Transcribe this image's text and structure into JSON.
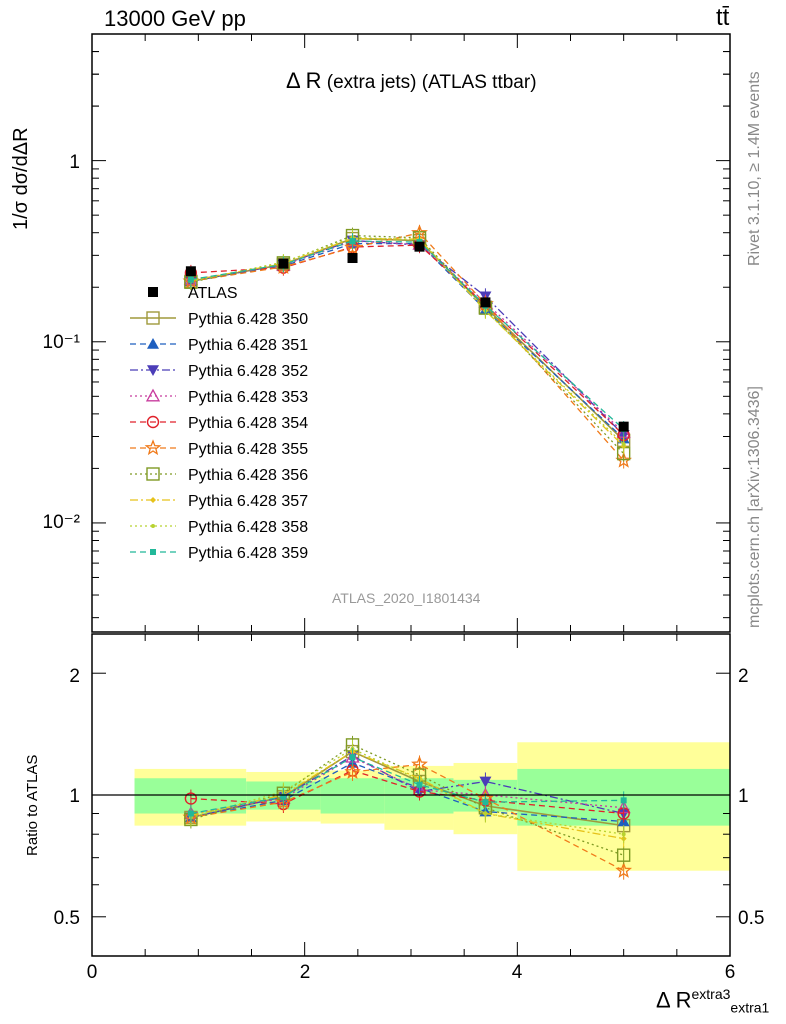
{
  "header": {
    "energy_label": "13000 GeV pp",
    "process_label": "tt̄",
    "plot_title_main": "Δ R",
    "plot_title_rest": "(extra jets) (ATLAS ttbar)",
    "analysis_id": "ATLAS_2020_I1801434",
    "side_rivet": "Rivet 3.1.10, ≥ 1.4M events",
    "side_mcplots": "mcplots.cern.ch [arXiv:1306.3436]"
  },
  "axes": {
    "ylabel_main": "1/σ dσ/dΔR",
    "ylabel_ratio": "Ratio to ATLAS",
    "xlabel_main": "Δ R",
    "xlabel_sup": "extra3",
    "xlabel_sub": "extra1",
    "main_ticks": [
      "10⁻²",
      "10⁻¹",
      "1"
    ],
    "ratio_ticks": [
      "0.5",
      "1",
      "2"
    ],
    "x_ticks": [
      "0",
      "2",
      "4",
      "6"
    ]
  },
  "chart_data": {
    "type": "line",
    "title": "Δ R (extra jets) (ATLAS ttbar)",
    "xlabel": "Δ R extra1 extra3",
    "ylabel": "1/σ dσ/dΔR",
    "yscale": "log",
    "xlim": [
      0,
      6
    ],
    "ylim": [
      0.0025,
      5
    ],
    "ratio_ylim": [
      0.4,
      2.5
    ],
    "legend_position": "left-middle",
    "bins": [
      [
        0.4,
        1.45
      ],
      [
        1.45,
        2.15
      ],
      [
        2.15,
        2.75
      ],
      [
        2.75,
        3.4
      ],
      [
        3.4,
        4.0
      ],
      [
        4.0,
        6.0
      ]
    ],
    "bin_centers": [
      0.93,
      1.8,
      2.45,
      3.08,
      3.7,
      5.0
    ],
    "atlas": {
      "name": "ATLAS",
      "values": [
        0.245,
        0.27,
        0.29,
        0.335,
        0.165,
        0.034
      ],
      "band_stat": [
        0.1,
        0.08,
        0.1,
        0.1,
        0.09,
        0.16
      ],
      "band_total": [
        0.16,
        0.14,
        0.15,
        0.18,
        0.2,
        0.35
      ]
    },
    "series": [
      {
        "name": "Pythia 6.428 350",
        "color": "#a09a3c",
        "marker": "open-square",
        "dash": "solid",
        "ratio": [
          0.88,
          0.99,
          1.28,
          1.08,
          0.94,
          0.84
        ]
      },
      {
        "name": "Pythia 6.428 351",
        "color": "#1f5fbf",
        "marker": "filled-triangle-up",
        "dash": "dashed",
        "ratio": [
          0.88,
          0.97,
          1.2,
          1.04,
          0.91,
          0.86
        ]
      },
      {
        "name": "Pythia 6.428 352",
        "color": "#4b3db8",
        "marker": "filled-triangle-down",
        "dash": "dashdot",
        "ratio": [
          0.88,
          0.99,
          1.25,
          1.02,
          1.08,
          0.9
        ]
      },
      {
        "name": "Pythia 6.428 353",
        "color": "#c83c9e",
        "marker": "open-triangle-up",
        "dash": "dotted",
        "ratio": [
          0.9,
          0.98,
          1.24,
          1.03,
          1.0,
          0.93
        ]
      },
      {
        "name": "Pythia 6.428 354",
        "color": "#e0202a",
        "marker": "open-circle",
        "dash": "dashed",
        "ratio": [
          0.98,
          0.95,
          1.15,
          1.02,
          0.97,
          0.9
        ]
      },
      {
        "name": "Pythia 6.428 355",
        "color": "#f07a1a",
        "marker": "open-star",
        "dash": "dashed",
        "ratio": [
          0.88,
          0.96,
          1.14,
          1.19,
          0.98,
          0.65
        ]
      },
      {
        "name": "Pythia 6.428 356",
        "color": "#7f9a24",
        "marker": "open-square",
        "dash": "dotted",
        "ratio": [
          0.87,
          1.01,
          1.33,
          1.12,
          0.93,
          0.71
        ]
      },
      {
        "name": "Pythia 6.428 357",
        "color": "#e6c21a",
        "marker": "filled-diamond-small",
        "dash": "dashdot",
        "ratio": [
          0.89,
          1.0,
          1.28,
          1.1,
          0.9,
          0.78
        ]
      },
      {
        "name": "Pythia 6.428 358",
        "color": "#b8d230",
        "marker": "filled-dot-small",
        "dash": "dotted",
        "ratio": [
          0.88,
          1.02,
          1.3,
          1.09,
          0.9,
          0.8
        ]
      },
      {
        "name": "Pythia 6.428 359",
        "color": "#22b899",
        "marker": "filled-square-small",
        "dash": "dashed",
        "ratio": [
          0.9,
          0.99,
          1.24,
          1.06,
          0.96,
          0.97
        ]
      }
    ]
  }
}
